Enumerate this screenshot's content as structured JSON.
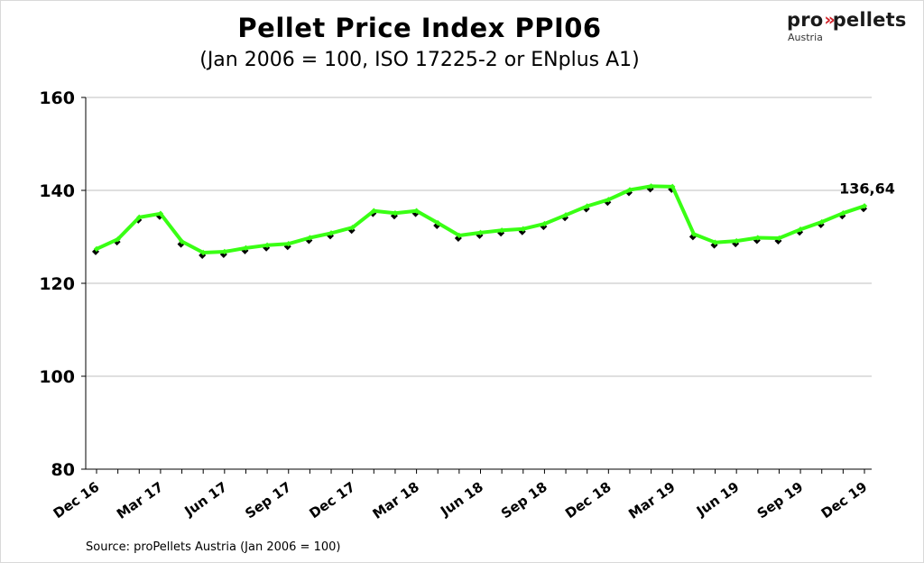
{
  "header": {
    "title": "Pellet Price Index PPI06",
    "subtitle": "(Jan 2006 = 100, ISO 17225-2 or ENplus A1)"
  },
  "logo": {
    "part1": "pro",
    "arrows": "»",
    "part2": "pellets",
    "sub": "Austria"
  },
  "source": "Source: proPellets Austria (Jan 2006 = 100)",
  "colors": {
    "line": "#39ff14",
    "markers": "#000000",
    "grid": "#bfbfbf",
    "logo_accent": "#d2232a"
  },
  "chart_data": {
    "type": "line",
    "title": "Pellet Price Index PPI06",
    "subtitle": "(Jan 2006 = 100, ISO 17225-2 or ENplus A1)",
    "xlabel": "",
    "ylabel": "",
    "ylim": [
      80,
      160
    ],
    "yticks": [
      80,
      100,
      120,
      140,
      160
    ],
    "grid": true,
    "x": [
      "Dec 16",
      "Jan 17",
      "Feb 17",
      "Mar 17",
      "Apr 17",
      "May 17",
      "Jun 17",
      "Jul 17",
      "Aug 17",
      "Sep 17",
      "Oct 17",
      "Nov 17",
      "Dec 17",
      "Jan 18",
      "Feb 18",
      "Mar 18",
      "Apr 18",
      "May 18",
      "Jun 18",
      "Jul 18",
      "Aug 18",
      "Sep 18",
      "Oct 18",
      "Nov 18",
      "Dec 18",
      "Jan 19",
      "Feb 19",
      "Mar 19",
      "Apr 19",
      "May 19",
      "Jun 19",
      "Jul 19",
      "Aug 19",
      "Sep 19",
      "Oct 19",
      "Nov 19",
      "Dec 19"
    ],
    "xtick_labels": [
      "Dec 16",
      "Mar 17",
      "Jun 17",
      "Sep 17",
      "Dec 17",
      "Mar 18",
      "Jun 18",
      "Sep 18",
      "Dec 18",
      "Mar 19",
      "Jun 19",
      "Sep 19",
      "Dec 19"
    ],
    "series": [
      {
        "values": [
          127.4,
          129.5,
          134.2,
          135.0,
          129.0,
          126.6,
          126.8,
          127.6,
          128.2,
          128.5,
          129.8,
          130.8,
          132.0,
          135.6,
          135.1,
          135.6,
          133.0,
          130.3,
          130.9,
          131.4,
          131.7,
          132.8,
          134.7,
          136.6,
          138.0,
          140.1,
          140.9,
          140.8,
          130.6,
          128.8,
          129.1,
          129.8,
          129.7,
          131.6,
          133.2,
          135.1,
          136.64
        ]
      }
    ],
    "annotations": [
      {
        "label": "136,64",
        "at": "Dec 19"
      }
    ]
  }
}
